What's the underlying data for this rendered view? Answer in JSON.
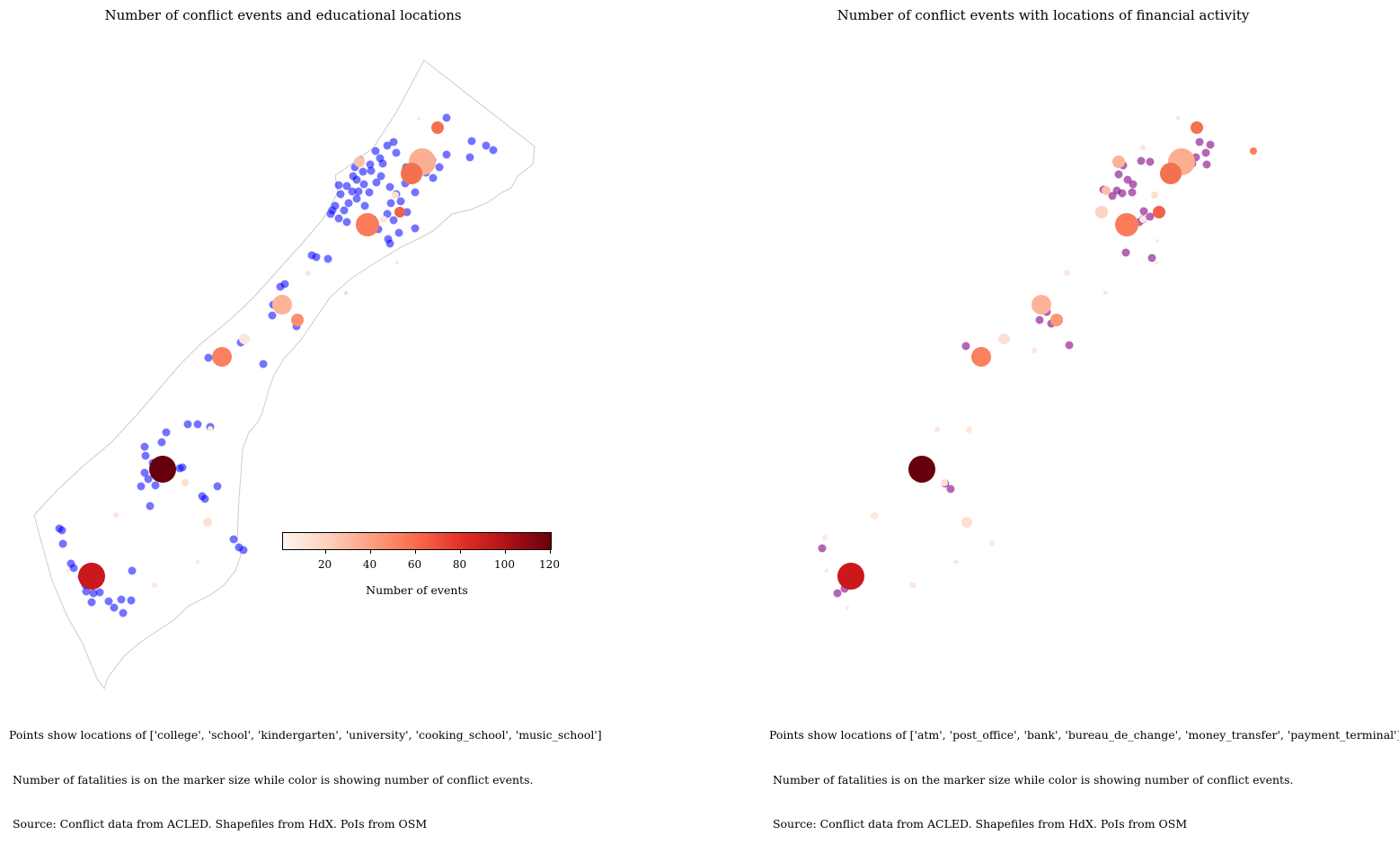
{
  "maps": {
    "left": {
      "title": "Number of conflict events and educational locations",
      "caption": [
        "Points show locations of ['college', 'school', 'kindergarten', 'university', 'cooking_school', 'music_school']",
        " Number of fatalities is on the marker size while color is showing number of conflict events.",
        " Source: Conflict data from ACLED. Shapefiles from HdX. PoIs from OSM"
      ],
      "poi_color": "#0000ff"
    },
    "right": {
      "title": "Number of conflict events with locations of financial activity",
      "caption": [
        "Points show locations of ['atm', 'post_office', 'bank', 'bureau_de_change', 'money_transfer', 'payment_terminal']",
        " Number of fatalities is on the marker size while color is showing number of conflict events.",
        " Source: Conflict data from ACLED. Shapefiles from HdX. PoIs from OSM"
      ],
      "poi_color": "#800080"
    }
  },
  "colorbar": {
    "title": "Number of events",
    "ticks": [
      "20",
      "40",
      "60",
      "80",
      "100",
      "120"
    ],
    "tick_values": [
      20,
      40,
      60,
      80,
      100,
      120
    ],
    "range": [
      1,
      121
    ],
    "colormap": "Reds",
    "stops": [
      "#fff5f0",
      "#fdd1bd",
      "#fc9f80",
      "#fa6a4a",
      "#e32f27",
      "#b11117",
      "#67000d"
    ]
  },
  "boundary_color": "#cccccc"
}
